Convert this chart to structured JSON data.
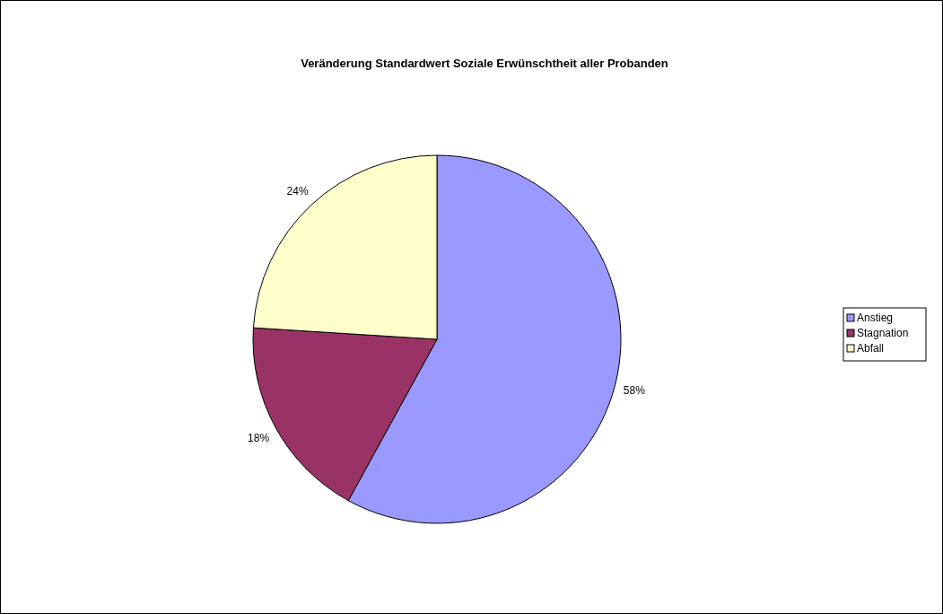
{
  "chart_data": {
    "type": "pie",
    "title": "Veränderung Standardwert Soziale Erwünschtheit aller Probanden",
    "categories": [
      "Anstieg",
      "Stagnation",
      "Abfall"
    ],
    "values": [
      58,
      18,
      24
    ],
    "colors": [
      "#9999ff",
      "#993366",
      "#ffffcc"
    ],
    "value_labels": [
      "58%",
      "18%",
      "24%"
    ],
    "legend": "right"
  }
}
